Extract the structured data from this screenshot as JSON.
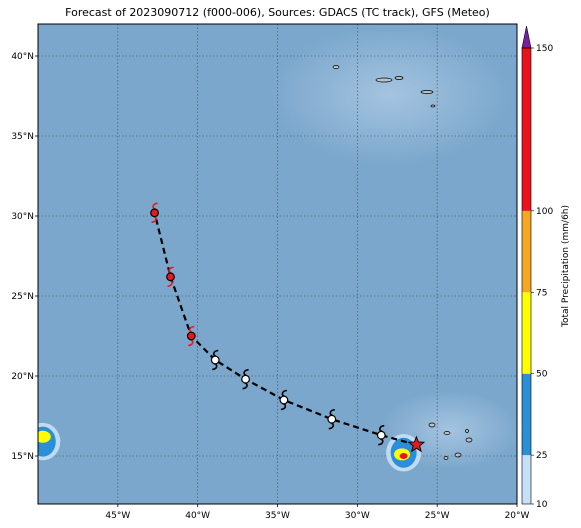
{
  "title": "Forecast of 2023090712 (f000-006), Sources: GDACS (TC track), GFS (Meteo)",
  "map": {
    "lon_range": [
      -50,
      -20
    ],
    "lat_range": [
      12,
      42
    ],
    "lon_ticks": [
      {
        "value": -45,
        "label": "45°W"
      },
      {
        "value": -40,
        "label": "40°W"
      },
      {
        "value": -35,
        "label": "35°W"
      },
      {
        "value": -30,
        "label": "30°W"
      },
      {
        "value": -25,
        "label": "25°W"
      },
      {
        "value": -20,
        "label": "20°W"
      }
    ],
    "lat_ticks": [
      {
        "value": 15,
        "label": "15°N"
      },
      {
        "value": 20,
        "label": "20°N"
      },
      {
        "value": 25,
        "label": "25°N"
      },
      {
        "value": 30,
        "label": "30°N"
      },
      {
        "value": 35,
        "label": "35°N"
      },
      {
        "value": 40,
        "label": "40°N"
      }
    ],
    "ocean_color": "#7ba7cc",
    "gridlines": true
  },
  "track": {
    "line_style": "dashed",
    "line_color": "#000000",
    "points": [
      {
        "lon": -26.3,
        "lat": 15.7,
        "marker": "star",
        "color": "#e41a1c"
      },
      {
        "lon": -28.5,
        "lat": 16.3,
        "marker": "storm",
        "color": "#ffffff"
      },
      {
        "lon": -31.6,
        "lat": 17.3,
        "marker": "storm",
        "color": "#ffffff"
      },
      {
        "lon": -34.6,
        "lat": 18.5,
        "marker": "storm",
        "color": "#ffffff"
      },
      {
        "lon": -37.0,
        "lat": 19.8,
        "marker": "storm",
        "color": "#ffffff"
      },
      {
        "lon": -38.9,
        "lat": 21.0,
        "marker": "storm",
        "color": "#ffffff"
      },
      {
        "lon": -40.4,
        "lat": 22.5,
        "marker": "hurricane",
        "color": "#e41a1c"
      },
      {
        "lon": -41.7,
        "lat": 26.2,
        "marker": "hurricane",
        "color": "#e41a1c"
      },
      {
        "lon": -42.7,
        "lat": 30.2,
        "marker": "hurricane",
        "color": "#e41a1c"
      }
    ]
  },
  "precip_blobs": [
    {
      "lon": -49.7,
      "lat": 15.9,
      "level": 25
    },
    {
      "lon": -49.7,
      "lat": 16.2,
      "level": 50
    },
    {
      "lon": -27.1,
      "lat": 15.2,
      "level": 25
    },
    {
      "lon": -27.2,
      "lat": 15.1,
      "level": 50
    },
    {
      "lon": -27.1,
      "lat": 15.0,
      "level": 100
    }
  ],
  "colorbar": {
    "label": "Total Precipitation (mm/6h)",
    "levels": [
      {
        "from": 10,
        "to": 25,
        "color": "#c6e0f7"
      },
      {
        "from": 25,
        "to": 50,
        "color": "#2a8fd8"
      },
      {
        "from": 50,
        "to": 75,
        "color": "#ffff00"
      },
      {
        "from": 75,
        "to": 100,
        "color": "#f5a623"
      },
      {
        "from": 100,
        "to": 150,
        "color": "#e8131b"
      }
    ],
    "extend_color": "#7b1fa2",
    "tick_values": [
      "10",
      "25",
      "50",
      "75",
      "100",
      "150"
    ]
  }
}
